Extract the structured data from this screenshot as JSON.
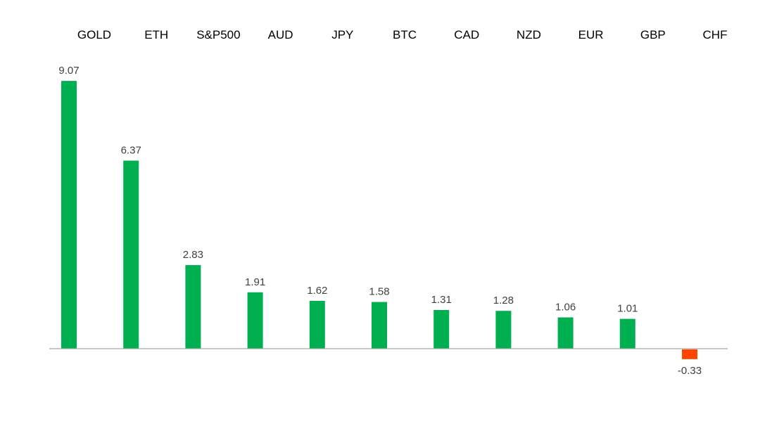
{
  "chart_data": {
    "type": "bar",
    "categories": [
      "GOLD",
      "ETH",
      "S&P500",
      "AUD",
      "JPY",
      "BTC",
      "CAD",
      "NZD",
      "EUR",
      "GBP",
      "CHF"
    ],
    "values": [
      9.07,
      6.37,
      2.83,
      1.91,
      1.62,
      1.58,
      1.31,
      1.28,
      1.06,
      1.01,
      -0.33
    ],
    "value_labels": [
      "9.07",
      "6.37",
      "2.83",
      "1.91",
      "1.62",
      "1.58",
      "1.31",
      "1.28",
      "1.06",
      "1.01",
      "-0.33"
    ],
    "title": "",
    "xlabel": "",
    "ylabel": "",
    "ylim": [
      -0.5,
      9.5
    ],
    "grid": false,
    "category_labels_position": "top",
    "colors": {
      "positive": "#00B050",
      "negative": "#FF4500",
      "axis": "#A6A6A6"
    }
  }
}
